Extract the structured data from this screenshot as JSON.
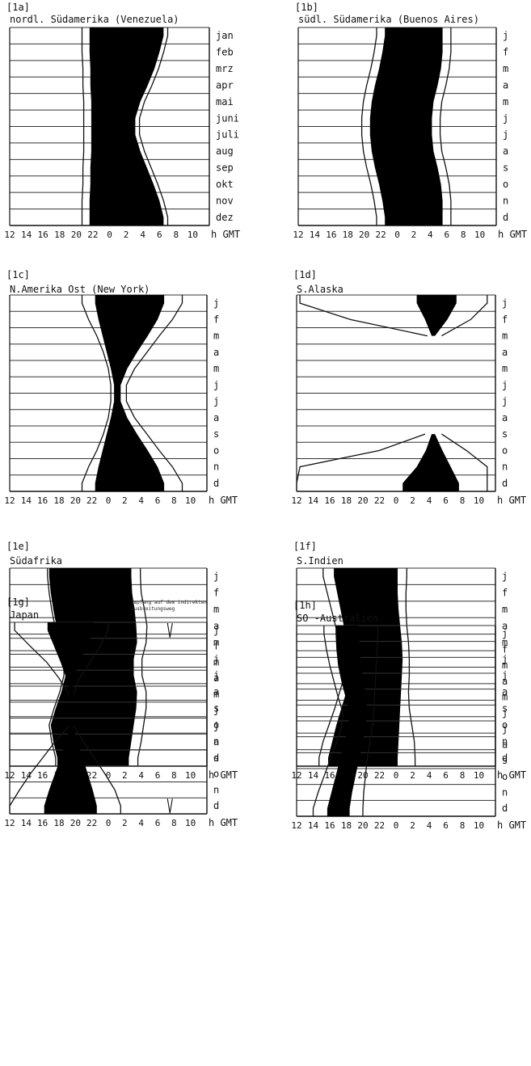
{
  "x_axis": {
    "ticks": [
      "12",
      "14",
      "16",
      "18",
      "20",
      "22",
      "0",
      "2",
      "4",
      "6",
      "8",
      "10"
    ],
    "unit": "h GMT"
  },
  "chart_data": [
    {
      "id": "[1a]",
      "title": "nordl. Südamerika (Venezuela)",
      "type": "area",
      "months": [
        "jan",
        "feb",
        "mrz",
        "apr",
        "mai",
        "juni",
        "juli",
        "aug",
        "sep",
        "okt",
        "nov",
        "dez"
      ],
      "black_band": {
        "start": [
          21.6,
          21.6,
          21.7,
          21.7,
          21.8,
          21.8,
          21.8,
          21.8,
          21.7,
          21.7,
          21.6,
          21.6
        ],
        "end": [
          30.5,
          30.0,
          29.4,
          28.6,
          27.7,
          27.1,
          27.1,
          27.7,
          28.5,
          29.3,
          30.0,
          30.5
        ]
      },
      "outer_band": {
        "start": [
          20.7,
          20.7,
          20.8,
          20.8,
          20.9,
          20.9,
          20.9,
          20.9,
          20.8,
          20.8,
          20.7,
          20.7
        ],
        "end": [
          31.0,
          30.5,
          29.9,
          29.1,
          28.2,
          27.6,
          27.6,
          28.2,
          29.0,
          29.8,
          30.5,
          31.0
        ]
      },
      "markers": []
    },
    {
      "id": "[1b]",
      "title": "südl. Südamerika (Buenos Aires)",
      "type": "area",
      "months": [
        "j",
        "f",
        "m",
        "a",
        "m",
        "j",
        "j",
        "a",
        "s",
        "o",
        "n",
        "d"
      ],
      "black_band": {
        "start": [
          22.5,
          22.2,
          21.8,
          21.3,
          20.9,
          20.7,
          20.7,
          20.9,
          21.3,
          21.8,
          22.2,
          22.5
        ],
        "end": [
          29.5,
          29.5,
          29.3,
          28.9,
          28.4,
          28.2,
          28.2,
          28.4,
          28.9,
          29.3,
          29.5,
          29.5
        ]
      },
      "outer_band": {
        "start": [
          21.5,
          21.2,
          20.8,
          20.3,
          19.9,
          19.7,
          19.7,
          19.9,
          20.3,
          20.8,
          21.2,
          21.5
        ],
        "end": [
          30.5,
          30.5,
          30.3,
          29.9,
          29.4,
          29.2,
          29.2,
          29.4,
          29.9,
          30.3,
          30.5,
          30.5
        ]
      },
      "markers": []
    },
    {
      "id": "[1c]",
      "title": "N.Amerika Ost (New York)",
      "type": "area",
      "months": [
        "j",
        "f",
        "m",
        "a",
        "m",
        "j",
        "j",
        "a",
        "s",
        "o",
        "n",
        "d"
      ],
      "black_band": {
        "start": [
          22.4,
          22.8,
          23.3,
          23.8,
          24.3,
          24.7,
          24.7,
          24.3,
          23.8,
          23.3,
          22.8,
          22.4
        ],
        "end": [
          30.8,
          30.0,
          28.8,
          27.5,
          26.3,
          25.5,
          25.5,
          26.3,
          27.5,
          28.8,
          30.0,
          30.8
        ]
      },
      "outer_band": {
        "start": [
          20.8,
          21.6,
          22.6,
          23.4,
          24.0,
          24.3,
          24.3,
          24.0,
          23.4,
          22.6,
          21.6,
          20.8
        ],
        "end": [
          33.0,
          31.8,
          30.2,
          28.7,
          27.2,
          26.2,
          26.2,
          27.2,
          28.7,
          30.2,
          31.8,
          33.0
        ]
      },
      "markers": []
    },
    {
      "id": "[1d]",
      "title": "S.Alaska",
      "type": "area",
      "months": [
        "j",
        "f",
        "m",
        "a",
        "m",
        "j",
        "j",
        "a",
        "s",
        "o",
        "n",
        "d"
      ],
      "black_band": {
        "start": [
          26.5,
          27.5,
          28.3,
          null,
          null,
          null,
          null,
          null,
          28.3,
          27.6,
          26.5,
          24.8
        ],
        "end": [
          31.3,
          30.2,
          28.7,
          null,
          null,
          null,
          null,
          null,
          28.7,
          29.6,
          30.6,
          31.6
        ]
      },
      "outer_band": {
        "start": [
          12.4,
          18.5,
          27.8,
          null,
          null,
          null,
          null,
          null,
          27.5,
          22.0,
          12.4,
          12.0
        ],
        "end": [
          35.0,
          33.0,
          29.5,
          null,
          null,
          null,
          null,
          null,
          29.5,
          32.5,
          35.0,
          35.0
        ]
      },
      "markers": []
    },
    {
      "id": "[1e]",
      "title": "Südafrika",
      "type": "area",
      "months": [
        "j",
        "f",
        "m",
        "a",
        "m",
        "j",
        "j",
        "a",
        "s",
        "o",
        "n",
        "d"
      ],
      "black_band": {
        "start": [
          16.8,
          17.0,
          17.3,
          17.7,
          18.3,
          18.8,
          18.8,
          18.3,
          17.6,
          17.0,
          17.3,
          17.8
        ],
        "end": [
          26.8,
          26.9,
          27.2,
          27.4,
          27.5,
          27.1,
          27.1,
          27.5,
          27.4,
          27.1,
          26.8,
          26.5
        ]
      },
      "outer_band": {
        "start": [
          16.6,
          16.8,
          17.1,
          17.5,
          18.1,
          18.6,
          18.6,
          18.1,
          17.4,
          16.8,
          17.1,
          17.6
        ],
        "end": [
          27.9,
          28.0,
          28.4,
          28.7,
          28.6,
          28.1,
          28.1,
          28.6,
          28.6,
          28.3,
          28.0,
          27.6
        ]
      },
      "markers": []
    },
    {
      "id": "[1f]",
      "title": "S.Indien",
      "type": "area",
      "months": [
        "j",
        "f",
        "m",
        "a",
        "m",
        "j",
        "j",
        "a",
        "s",
        "o",
        "n",
        "d"
      ],
      "black_band": {
        "start": [
          16.5,
          16.9,
          17.3,
          17.7,
          18.1,
          18.6,
          18.6,
          18.0,
          17.4,
          16.8,
          16.3,
          15.8
        ],
        "end": [
          24.2,
          24.2,
          24.3,
          24.5,
          24.7,
          24.8,
          24.7,
          24.6,
          24.5,
          24.4,
          24.3,
          24.2
        ]
      },
      "outer_band": {
        "start": [
          15.2,
          15.7,
          16.2,
          16.7,
          17.2,
          17.8,
          17.8,
          17.2,
          16.6,
          15.9,
          15.2,
          14.7
        ],
        "end": [
          25.3,
          25.2,
          25.2,
          25.3,
          25.5,
          25.6,
          25.6,
          25.5,
          25.6,
          25.9,
          26.2,
          26.3
        ]
      },
      "markers": []
    },
    {
      "id": "[1g]",
      "title": "Japan",
      "type": "area",
      "months": [
        "j",
        "f",
        "m",
        "a",
        "m",
        "j",
        "j",
        "a",
        "s",
        "o",
        "n",
        "d"
      ],
      "black_band": {
        "start": [
          16.6,
          17.4,
          18.2,
          18.9,
          19.4,
          null,
          19.4,
          18.8,
          18.2,
          17.5,
          16.8,
          16.2
        ],
        "end": [
          22.2,
          21.4,
          20.5,
          19.8,
          19.6,
          null,
          19.6,
          20.2,
          20.9,
          21.5,
          22.1,
          22.6
        ]
      },
      "outer_band": {
        "start": [
          12.6,
          14.5,
          16.5,
          18.0,
          19.2,
          null,
          19.2,
          17.5,
          16.0,
          14.5,
          13.2,
          12.0
        ],
        "end": [
          24.0,
          23.0,
          21.8,
          20.5,
          19.8,
          null,
          19.8,
          21.0,
          22.3,
          23.6,
          24.8,
          25.5
        ]
      },
      "markers": [
        {
          "month": "j",
          "time": 31.5
        },
        {
          "month": "d",
          "time": 31.5
        }
      ]
    },
    {
      "id": "[1h]",
      "title": "SO -Australien",
      "type": "area",
      "months": [
        "j",
        "f",
        "m",
        "a",
        "m",
        "j",
        "j",
        "a",
        "s",
        "o",
        "n",
        "d"
      ],
      "black_band": {
        "start": [
          16.7,
          16.8,
          17.0,
          17.4,
          17.9,
          18.4,
          18.2,
          17.7,
          17.2,
          16.7,
          16.2,
          15.7
        ],
        "end": [
          19.5,
          19.6,
          19.8,
          20.1,
          20.4,
          20.5,
          20.3,
          19.9,
          19.5,
          19.1,
          18.7,
          18.4
        ]
      },
      "outer_band": {
        "start": [
          15.3,
          15.6,
          16.0,
          16.5,
          17.0,
          17.6,
          17.4,
          16.7,
          16.0,
          15.3,
          14.6,
          14.0
        ],
        "end": [
          21.8,
          21.7,
          21.6,
          21.5,
          21.4,
          21.3,
          21.1,
          20.8,
          20.5,
          20.3,
          20.1,
          20.0
        ]
      },
      "markers": []
    }
  ],
  "annotation_1g": [
    "Empfang auf dem indirekten",
    "Ausbreitungsweg"
  ]
}
